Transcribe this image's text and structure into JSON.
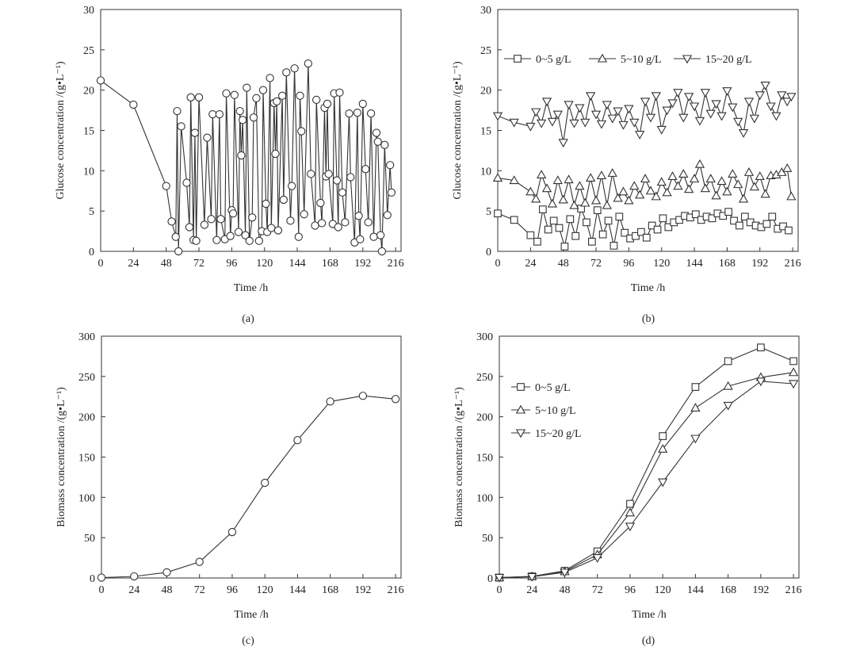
{
  "chart_data": [
    {
      "panel": "a",
      "type": "line",
      "caption": "(a)",
      "xlabel": "Time /h",
      "ylabel": "Glucose concentration /(g•L⁻¹)",
      "xlim": [
        0,
        220
      ],
      "ylim": [
        0,
        30
      ],
      "xticks": [
        0,
        24,
        48,
        72,
        96,
        120,
        144,
        168,
        192,
        216
      ],
      "yticks": [
        0,
        5,
        10,
        15,
        20,
        25,
        30
      ],
      "series": [
        {
          "marker": "circle",
          "x": [
            0,
            24,
            48,
            52,
            55,
            56,
            57,
            59,
            63,
            65,
            66,
            68,
            69,
            70,
            72,
            76,
            78,
            81,
            82,
            85,
            87,
            88,
            91,
            92,
            95,
            96,
            97,
            98,
            101,
            102,
            103,
            104,
            106,
            107,
            109,
            111,
            112,
            114,
            116,
            118,
            119,
            121,
            122,
            124,
            125,
            127,
            128,
            129,
            130,
            133,
            134,
            136,
            139,
            140,
            142,
            145,
            146,
            147,
            149,
            152,
            154,
            157,
            158,
            161,
            162,
            164,
            165,
            166,
            167,
            170,
            171,
            173,
            174,
            175,
            177,
            179,
            182,
            183,
            186,
            188,
            189,
            190,
            192,
            194,
            196,
            198,
            200,
            202,
            203,
            205,
            206,
            208,
            210,
            212,
            213
          ],
          "y": [
            21.2,
            18.2,
            8.1,
            3.7,
            1.8,
            17.4,
            0.0,
            15.5,
            8.5,
            3.0,
            19.1,
            1.4,
            14.7,
            1.3,
            19.1,
            3.3,
            14.1,
            4.0,
            17.0,
            1.4,
            17.0,
            4.0,
            1.5,
            19.6,
            1.9,
            5.1,
            4.7,
            19.4,
            2.4,
            17.4,
            11.9,
            16.3,
            2.0,
            20.3,
            1.3,
            4.2,
            16.6,
            19.0,
            1.3,
            2.5,
            20.0,
            5.9,
            2.4,
            21.5,
            2.9,
            18.4,
            12.1,
            18.6,
            2.6,
            19.3,
            6.4,
            22.2,
            3.8,
            8.1,
            22.7,
            1.8,
            19.3,
            14.9,
            4.6,
            23.3,
            9.6,
            3.2,
            18.8,
            6.0,
            3.5,
            17.8,
            9.3,
            18.3,
            9.6,
            3.4,
            19.6,
            8.8,
            3.0,
            19.7,
            7.3,
            3.6,
            17.1,
            9.2,
            1.1,
            17.2,
            4.4,
            1.5,
            18.3,
            10.2,
            3.6,
            17.1,
            1.8,
            14.7,
            13.6,
            2.0,
            0.0,
            13.2,
            4.5,
            10.7,
            7.3
          ]
        }
      ]
    },
    {
      "panel": "b",
      "type": "line",
      "caption": "(b)",
      "xlabel": "Time /h",
      "ylabel": "Glucose concentration /(g•L⁻¹)",
      "xlim": [
        0,
        220
      ],
      "ylim": [
        0,
        30
      ],
      "xticks": [
        0,
        24,
        48,
        72,
        96,
        120,
        144,
        168,
        192,
        216
      ],
      "yticks": [
        0,
        5,
        10,
        15,
        20,
        25,
        30
      ],
      "legend_position": "top",
      "series": [
        {
          "name": "0~5 g/L",
          "marker": "square",
          "x": [
            0,
            12,
            24,
            29,
            33,
            37,
            41,
            45,
            49,
            53,
            57,
            61,
            65,
            69,
            73,
            77,
            81,
            85,
            89,
            93,
            97,
            101,
            105,
            109,
            113,
            117,
            121,
            125,
            129,
            133,
            137,
            141,
            145,
            149,
            153,
            157,
            161,
            165,
            169,
            173,
            177,
            181,
            185,
            189,
            193,
            197,
            201,
            205,
            209,
            213
          ],
          "y": [
            4.7,
            3.9,
            2.0,
            1.2,
            5.2,
            2.7,
            3.8,
            2.9,
            0.6,
            4.0,
            1.9,
            5.3,
            3.6,
            1.2,
            5.1,
            2.1,
            3.8,
            0.7,
            4.3,
            2.3,
            1.6,
            1.9,
            2.4,
            1.7,
            3.2,
            2.7,
            4.1,
            3.0,
            3.6,
            3.9,
            4.4,
            4.2,
            4.6,
            3.9,
            4.3,
            4.1,
            4.7,
            4.4,
            4.9,
            3.8,
            3.2,
            4.3,
            3.6,
            3.2,
            3.0,
            3.4,
            4.3,
            2.8,
            3.1,
            2.6
          ]
        },
        {
          "name": "5~10 g/L",
          "marker": "triangle-up",
          "x": [
            0,
            12,
            24,
            28,
            32,
            36,
            40,
            44,
            48,
            52,
            56,
            60,
            64,
            68,
            72,
            76,
            80,
            84,
            88,
            92,
            96,
            100,
            104,
            108,
            112,
            116,
            120,
            124,
            128,
            132,
            136,
            140,
            144,
            148,
            152,
            156,
            160,
            164,
            168,
            172,
            176,
            180,
            184,
            188,
            192,
            196,
            200,
            204,
            208,
            212,
            215
          ],
          "y": [
            9.1,
            8.8,
            7.4,
            6.5,
            9.5,
            7.8,
            5.9,
            8.8,
            6.4,
            8.9,
            5.7,
            8.1,
            6.0,
            9.1,
            6.3,
            9.4,
            5.7,
            9.7,
            6.6,
            7.4,
            6.3,
            8.1,
            7.0,
            9.0,
            7.5,
            6.8,
            8.6,
            7.3,
            9.3,
            8.1,
            9.6,
            7.7,
            9.0,
            10.8,
            7.8,
            9.0,
            6.9,
            8.7,
            7.4,
            9.6,
            8.3,
            6.5,
            9.8,
            8.0,
            9.3,
            7.1,
            9.4,
            9.5,
            9.8,
            10.3,
            6.8
          ]
        },
        {
          "name": "15~20 g/L",
          "marker": "triangle-down",
          "x": [
            0,
            12,
            24,
            28,
            32,
            36,
            40,
            44,
            48,
            52,
            56,
            60,
            64,
            68,
            72,
            76,
            80,
            84,
            88,
            92,
            96,
            100,
            104,
            108,
            112,
            116,
            120,
            124,
            128,
            132,
            136,
            140,
            144,
            148,
            152,
            156,
            160,
            164,
            168,
            172,
            176,
            180,
            184,
            188,
            192,
            196,
            200,
            204,
            208,
            212,
            215
          ],
          "y": [
            16.8,
            16.0,
            15.5,
            17.3,
            15.9,
            18.6,
            16.1,
            17.0,
            13.5,
            18.2,
            15.9,
            17.8,
            16.0,
            19.3,
            17.0,
            15.8,
            18.2,
            16.5,
            17.4,
            15.7,
            17.7,
            16.0,
            14.5,
            18.6,
            16.6,
            19.3,
            15.1,
            17.5,
            18.4,
            19.7,
            16.6,
            19.2,
            18.0,
            16.2,
            19.7,
            17.1,
            18.3,
            16.8,
            19.9,
            17.9,
            16.1,
            14.7,
            18.6,
            16.5,
            19.4,
            20.6,
            18.0,
            16.8,
            19.4,
            18.6,
            19.2
          ]
        }
      ]
    },
    {
      "panel": "c",
      "type": "line",
      "caption": "(c)",
      "xlabel": "Time /h",
      "ylabel": "Biomass concentration /(g•L⁻¹)",
      "xlim": [
        0,
        220
      ],
      "ylim": [
        0,
        300
      ],
      "xticks": [
        0,
        24,
        48,
        72,
        96,
        120,
        144,
        168,
        192,
        216
      ],
      "yticks": [
        0,
        50,
        100,
        150,
        200,
        250,
        300
      ],
      "series": [
        {
          "marker": "circle",
          "x": [
            0,
            24,
            48,
            72,
            96,
            120,
            144,
            168,
            192,
            216
          ],
          "y": [
            0.5,
            2,
            7,
            20,
            57,
            118,
            171,
            219,
            226,
            222
          ]
        }
      ]
    },
    {
      "panel": "d",
      "type": "line",
      "caption": "(d)",
      "xlabel": "Time /h",
      "ylabel": "Biomass concentration /(g•L⁻¹)",
      "xlim": [
        0,
        220
      ],
      "ylim": [
        0,
        300
      ],
      "xticks": [
        0,
        24,
        48,
        72,
        96,
        120,
        144,
        168,
        192,
        216
      ],
      "yticks": [
        0,
        50,
        100,
        150,
        200,
        250,
        300
      ],
      "legend_position": "top-left",
      "series": [
        {
          "name": "0~5 g/L",
          "marker": "square",
          "x": [
            0,
            24,
            48,
            72,
            96,
            120,
            144,
            168,
            192,
            216
          ],
          "y": [
            0.5,
            2,
            9,
            33,
            92,
            176,
            237,
            269,
            286,
            269
          ]
        },
        {
          "name": "5~10 g/L",
          "marker": "triangle-up",
          "x": [
            0,
            24,
            48,
            72,
            96,
            120,
            144,
            168,
            192,
            216
          ],
          "y": [
            0.5,
            2,
            8,
            29,
            81,
            160,
            211,
            238,
            249,
            255
          ]
        },
        {
          "name": "15~20 g/L",
          "marker": "triangle-down",
          "x": [
            0,
            24,
            48,
            72,
            96,
            120,
            144,
            168,
            192,
            216
          ],
          "y": [
            0.5,
            1.5,
            7,
            25,
            64,
            119,
            173,
            214,
            244,
            241
          ]
        }
      ]
    }
  ]
}
